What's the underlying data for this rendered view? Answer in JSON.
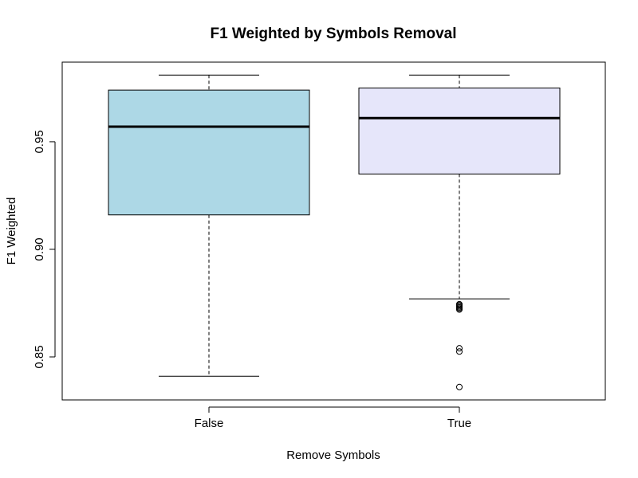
{
  "chart_data": {
    "type": "box",
    "title": "F1 Weighted by Symbols Removal",
    "xlabel": "Remove Symbols",
    "ylabel": "F1 Weighted",
    "categories": [
      "False",
      "True"
    ],
    "ylim": [
      0.83,
      0.987
    ],
    "yticks": [
      "0.85",
      "0.90",
      "0.95"
    ],
    "grid": false,
    "series": [
      {
        "category": "False",
        "color": "#add8e6",
        "whisker_low": 0.841,
        "q1": 0.916,
        "median": 0.957,
        "q3": 0.974,
        "whisker_high": 0.981,
        "outliers": []
      },
      {
        "category": "True",
        "color": "#e6e6fa",
        "whisker_low": 0.877,
        "q1": 0.935,
        "median": 0.961,
        "q3": 0.975,
        "whisker_high": 0.981,
        "outliers": [
          0.8745,
          0.874,
          0.8735,
          0.873,
          0.8725,
          0.872,
          0.854,
          0.8525,
          0.836
        ]
      }
    ]
  }
}
